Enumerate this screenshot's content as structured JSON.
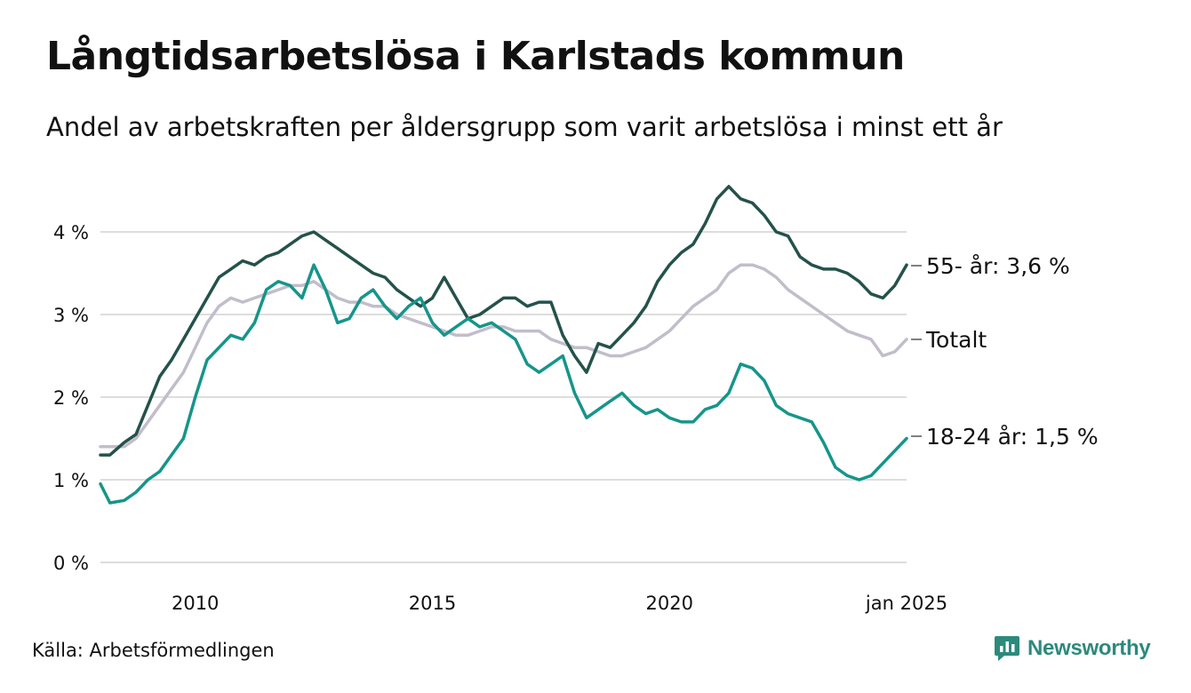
{
  "title": "Långtidsarbetslösa i Karlstads kommun",
  "subtitle": "Andel av arbetskraften per åldersgrupp som varit arbetslösa i minst ett år",
  "source": "Källa: Arbetsförmedlingen",
  "brand": "Newsworthy",
  "colors": {
    "series_55": "#24524a",
    "series_total": "#c2bdcb",
    "series_18_24": "#16958a",
    "grid": "#dddddd",
    "brand": "#2c8a7c"
  },
  "chart_data": {
    "type": "line",
    "y_ticks": [
      "0 %",
      "1 %",
      "2 %",
      "3 %",
      "4 %"
    ],
    "y_tick_values": [
      0,
      1,
      2,
      3,
      4
    ],
    "x_ticks": [
      "2010",
      "2015",
      "2020",
      "jan 2025"
    ],
    "x_tick_values": [
      2010.0,
      2015.0,
      2020.0,
      2025.0
    ],
    "xlim": [
      2008.0,
      2025.0
    ],
    "ylim": [
      0,
      4.5
    ],
    "series": [
      {
        "name": "Totalt",
        "label": "Totalt",
        "color": "#c2bdcb",
        "points": [
          [
            2008.0,
            1.4
          ],
          [
            2008.2,
            1.4
          ],
          [
            2008.5,
            1.4
          ],
          [
            2008.75,
            1.5
          ],
          [
            2009.0,
            1.7
          ],
          [
            2009.25,
            1.9
          ],
          [
            2009.5,
            2.1
          ],
          [
            2009.75,
            2.3
          ],
          [
            2010.0,
            2.6
          ],
          [
            2010.25,
            2.9
          ],
          [
            2010.5,
            3.1
          ],
          [
            2010.75,
            3.2
          ],
          [
            2011.0,
            3.15
          ],
          [
            2011.25,
            3.2
          ],
          [
            2011.5,
            3.25
          ],
          [
            2011.75,
            3.3
          ],
          [
            2012.0,
            3.35
          ],
          [
            2012.25,
            3.35
          ],
          [
            2012.5,
            3.4
          ],
          [
            2012.75,
            3.3
          ],
          [
            2013.0,
            3.2
          ],
          [
            2013.25,
            3.15
          ],
          [
            2013.5,
            3.15
          ],
          [
            2013.75,
            3.1
          ],
          [
            2014.0,
            3.1
          ],
          [
            2014.25,
            3.0
          ],
          [
            2014.5,
            2.95
          ],
          [
            2014.75,
            2.9
          ],
          [
            2015.0,
            2.85
          ],
          [
            2015.25,
            2.8
          ],
          [
            2015.5,
            2.75
          ],
          [
            2015.75,
            2.75
          ],
          [
            2016.0,
            2.8
          ],
          [
            2016.25,
            2.85
          ],
          [
            2016.5,
            2.85
          ],
          [
            2016.75,
            2.8
          ],
          [
            2017.0,
            2.8
          ],
          [
            2017.25,
            2.8
          ],
          [
            2017.5,
            2.7
          ],
          [
            2017.75,
            2.65
          ],
          [
            2018.0,
            2.6
          ],
          [
            2018.25,
            2.6
          ],
          [
            2018.5,
            2.55
          ],
          [
            2018.75,
            2.5
          ],
          [
            2019.0,
            2.5
          ],
          [
            2019.25,
            2.55
          ],
          [
            2019.5,
            2.6
          ],
          [
            2019.75,
            2.7
          ],
          [
            2020.0,
            2.8
          ],
          [
            2020.25,
            2.95
          ],
          [
            2020.5,
            3.1
          ],
          [
            2020.75,
            3.2
          ],
          [
            2021.0,
            3.3
          ],
          [
            2021.25,
            3.5
          ],
          [
            2021.5,
            3.6
          ],
          [
            2021.75,
            3.6
          ],
          [
            2022.0,
            3.55
          ],
          [
            2022.25,
            3.45
          ],
          [
            2022.5,
            3.3
          ],
          [
            2022.75,
            3.2
          ],
          [
            2023.0,
            3.1
          ],
          [
            2023.25,
            3.0
          ],
          [
            2023.5,
            2.9
          ],
          [
            2023.75,
            2.8
          ],
          [
            2024.0,
            2.75
          ],
          [
            2024.25,
            2.7
          ],
          [
            2024.5,
            2.5
          ],
          [
            2024.75,
            2.55
          ],
          [
            2025.0,
            2.7
          ]
        ]
      },
      {
        "name": "55- år",
        "label": "55- år: 3,6 %",
        "color": "#24524a",
        "points": [
          [
            2008.0,
            1.3
          ],
          [
            2008.2,
            1.3
          ],
          [
            2008.5,
            1.45
          ],
          [
            2008.75,
            1.55
          ],
          [
            2009.0,
            1.9
          ],
          [
            2009.25,
            2.25
          ],
          [
            2009.5,
            2.45
          ],
          [
            2009.75,
            2.7
          ],
          [
            2010.0,
            2.95
          ],
          [
            2010.25,
            3.2
          ],
          [
            2010.5,
            3.45
          ],
          [
            2010.75,
            3.55
          ],
          [
            2011.0,
            3.65
          ],
          [
            2011.25,
            3.6
          ],
          [
            2011.5,
            3.7
          ],
          [
            2011.75,
            3.75
          ],
          [
            2012.0,
            3.85
          ],
          [
            2012.25,
            3.95
          ],
          [
            2012.5,
            4.0
          ],
          [
            2012.75,
            3.9
          ],
          [
            2013.0,
            3.8
          ],
          [
            2013.25,
            3.7
          ],
          [
            2013.5,
            3.6
          ],
          [
            2013.75,
            3.5
          ],
          [
            2014.0,
            3.45
          ],
          [
            2014.25,
            3.3
          ],
          [
            2014.5,
            3.2
          ],
          [
            2014.75,
            3.1
          ],
          [
            2015.0,
            3.2
          ],
          [
            2015.25,
            3.45
          ],
          [
            2015.5,
            3.2
          ],
          [
            2015.75,
            2.95
          ],
          [
            2016.0,
            3.0
          ],
          [
            2016.25,
            3.1
          ],
          [
            2016.5,
            3.2
          ],
          [
            2016.75,
            3.2
          ],
          [
            2017.0,
            3.1
          ],
          [
            2017.25,
            3.15
          ],
          [
            2017.5,
            3.15
          ],
          [
            2017.75,
            2.75
          ],
          [
            2018.0,
            2.5
          ],
          [
            2018.25,
            2.3
          ],
          [
            2018.5,
            2.65
          ],
          [
            2018.75,
            2.6
          ],
          [
            2019.0,
            2.75
          ],
          [
            2019.25,
            2.9
          ],
          [
            2019.5,
            3.1
          ],
          [
            2019.75,
            3.4
          ],
          [
            2020.0,
            3.6
          ],
          [
            2020.25,
            3.75
          ],
          [
            2020.5,
            3.85
          ],
          [
            2020.75,
            4.1
          ],
          [
            2021.0,
            4.4
          ],
          [
            2021.25,
            4.55
          ],
          [
            2021.5,
            4.4
          ],
          [
            2021.75,
            4.35
          ],
          [
            2022.0,
            4.2
          ],
          [
            2022.25,
            4.0
          ],
          [
            2022.5,
            3.95
          ],
          [
            2022.75,
            3.7
          ],
          [
            2023.0,
            3.6
          ],
          [
            2023.25,
            3.55
          ],
          [
            2023.5,
            3.55
          ],
          [
            2023.75,
            3.5
          ],
          [
            2024.0,
            3.4
          ],
          [
            2024.25,
            3.25
          ],
          [
            2024.5,
            3.2
          ],
          [
            2024.75,
            3.35
          ],
          [
            2025.0,
            3.6
          ]
        ]
      },
      {
        "name": "18-24 år",
        "label": "18-24 år: 1,5 %",
        "color": "#16958a",
        "points": [
          [
            2008.0,
            0.95
          ],
          [
            2008.2,
            0.72
          ],
          [
            2008.5,
            0.75
          ],
          [
            2008.75,
            0.85
          ],
          [
            2009.0,
            1.0
          ],
          [
            2009.25,
            1.1
          ],
          [
            2009.5,
            1.3
          ],
          [
            2009.75,
            1.5
          ],
          [
            2010.0,
            2.0
          ],
          [
            2010.25,
            2.45
          ],
          [
            2010.5,
            2.6
          ],
          [
            2010.75,
            2.75
          ],
          [
            2011.0,
            2.7
          ],
          [
            2011.25,
            2.9
          ],
          [
            2011.5,
            3.3
          ],
          [
            2011.75,
            3.4
          ],
          [
            2012.0,
            3.35
          ],
          [
            2012.25,
            3.2
          ],
          [
            2012.5,
            3.6
          ],
          [
            2012.75,
            3.3
          ],
          [
            2013.0,
            2.9
          ],
          [
            2013.25,
            2.95
          ],
          [
            2013.5,
            3.2
          ],
          [
            2013.75,
            3.3
          ],
          [
            2014.0,
            3.1
          ],
          [
            2014.25,
            2.95
          ],
          [
            2014.5,
            3.1
          ],
          [
            2014.75,
            3.2
          ],
          [
            2015.0,
            2.9
          ],
          [
            2015.25,
            2.75
          ],
          [
            2015.5,
            2.85
          ],
          [
            2015.75,
            2.95
          ],
          [
            2016.0,
            2.85
          ],
          [
            2016.25,
            2.9
          ],
          [
            2016.5,
            2.8
          ],
          [
            2016.75,
            2.7
          ],
          [
            2017.0,
            2.4
          ],
          [
            2017.25,
            2.3
          ],
          [
            2017.5,
            2.4
          ],
          [
            2017.75,
            2.5
          ],
          [
            2018.0,
            2.05
          ],
          [
            2018.25,
            1.75
          ],
          [
            2018.5,
            1.85
          ],
          [
            2018.75,
            1.95
          ],
          [
            2019.0,
            2.05
          ],
          [
            2019.25,
            1.9
          ],
          [
            2019.5,
            1.8
          ],
          [
            2019.75,
            1.85
          ],
          [
            2020.0,
            1.75
          ],
          [
            2020.25,
            1.7
          ],
          [
            2020.5,
            1.7
          ],
          [
            2020.75,
            1.85
          ],
          [
            2021.0,
            1.9
          ],
          [
            2021.25,
            2.05
          ],
          [
            2021.5,
            2.4
          ],
          [
            2021.75,
            2.35
          ],
          [
            2022.0,
            2.2
          ],
          [
            2022.25,
            1.9
          ],
          [
            2022.5,
            1.8
          ],
          [
            2022.75,
            1.75
          ],
          [
            2023.0,
            1.7
          ],
          [
            2023.25,
            1.45
          ],
          [
            2023.5,
            1.15
          ],
          [
            2023.75,
            1.05
          ],
          [
            2024.0,
            1.0
          ],
          [
            2024.25,
            1.05
          ],
          [
            2024.5,
            1.2
          ],
          [
            2024.75,
            1.35
          ],
          [
            2025.0,
            1.5
          ]
        ]
      }
    ]
  }
}
